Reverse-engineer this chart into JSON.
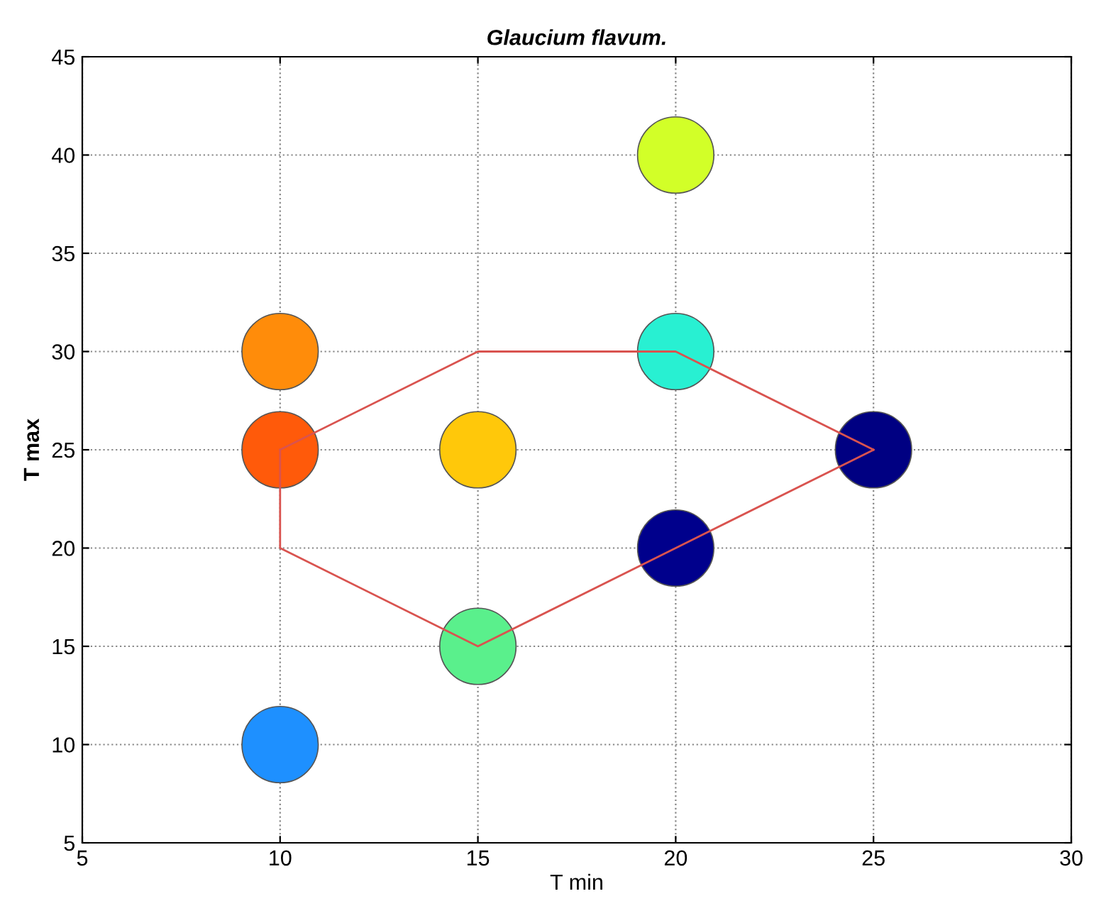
{
  "chart_data": {
    "type": "scatter",
    "title": "Glaucium flavum.",
    "xlabel": "T min",
    "ylabel": "T max",
    "xlim": [
      5,
      30
    ],
    "xticks": [
      5,
      10,
      15,
      20,
      25,
      30
    ],
    "ylim": [
      5,
      45
    ],
    "yticks": [
      5,
      10,
      15,
      20,
      25,
      30,
      35,
      40,
      45
    ],
    "grid": true,
    "series": [
      {
        "marker": "circle",
        "x": [
          10,
          10,
          10,
          15,
          15,
          20,
          20,
          20,
          25
        ],
        "values": [
          10,
          25,
          30,
          15,
          25,
          20,
          30,
          40,
          25
        ],
        "colors": [
          "#1e90ff",
          "#ff5a0a",
          "#ff8c0a",
          "#5af08c",
          "#ffc80a",
          "#00008c",
          "#28f0d2",
          "#d2ff28",
          "#000082"
        ]
      },
      {
        "type": "line",
        "color": "#d9534f",
        "marker": "none",
        "line_style": "solid",
        "x": [
          10,
          15,
          20,
          25
        ],
        "values": [
          25,
          30,
          30,
          25
        ]
      },
      {
        "type": "line",
        "color": "#d9534f",
        "marker": "none",
        "line_style": "solid",
        "x": [
          10,
          10,
          15,
          20,
          25
        ],
        "values": [
          25,
          20,
          15,
          20,
          25
        ]
      }
    ]
  }
}
